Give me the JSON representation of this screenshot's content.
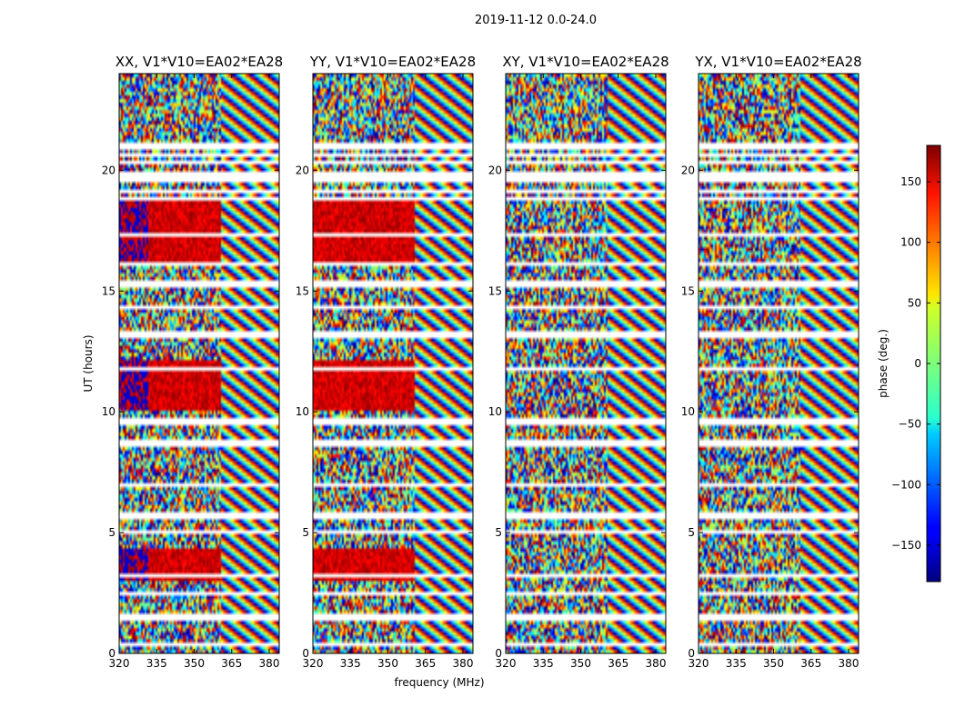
{
  "chart_data": {
    "type": "heatmap",
    "title": "2019-11-12 0.0-24.0",
    "xlabel": "frequency (MHz)",
    "ylabel": "UT (hours)",
    "xlim": [
      320,
      384
    ],
    "ylim": [
      0,
      24
    ],
    "xticks": [
      320,
      335,
      350,
      365,
      380
    ],
    "yticks": [
      0,
      5,
      10,
      15,
      20
    ],
    "panels": [
      {
        "title": "XX, V1*V10=EA02*EA28",
        "polarization": "XX"
      },
      {
        "title": "YY, V1*V10=EA02*EA28",
        "polarization": "YY"
      },
      {
        "title": "XY, V1*V10=EA02*EA28",
        "polarization": "XY"
      },
      {
        "title": "YX, V1*V10=EA02*EA28",
        "polarization": "YX"
      }
    ],
    "colorbar": {
      "label": "phase (deg.)",
      "range": [
        -180,
        180
      ],
      "ticks": [
        -150,
        -100,
        -50,
        0,
        50,
        100,
        150
      ],
      "colormap": "jet"
    },
    "flagged_ut_hours": [
      0.4,
      1.5,
      2.5,
      3.2,
      5.0,
      5.7,
      7.0,
      8.7,
      9.6,
      11.8,
      13.2,
      14.3,
      15.3,
      16.1,
      17.3,
      19.8,
      20.3,
      21.0
    ]
  }
}
